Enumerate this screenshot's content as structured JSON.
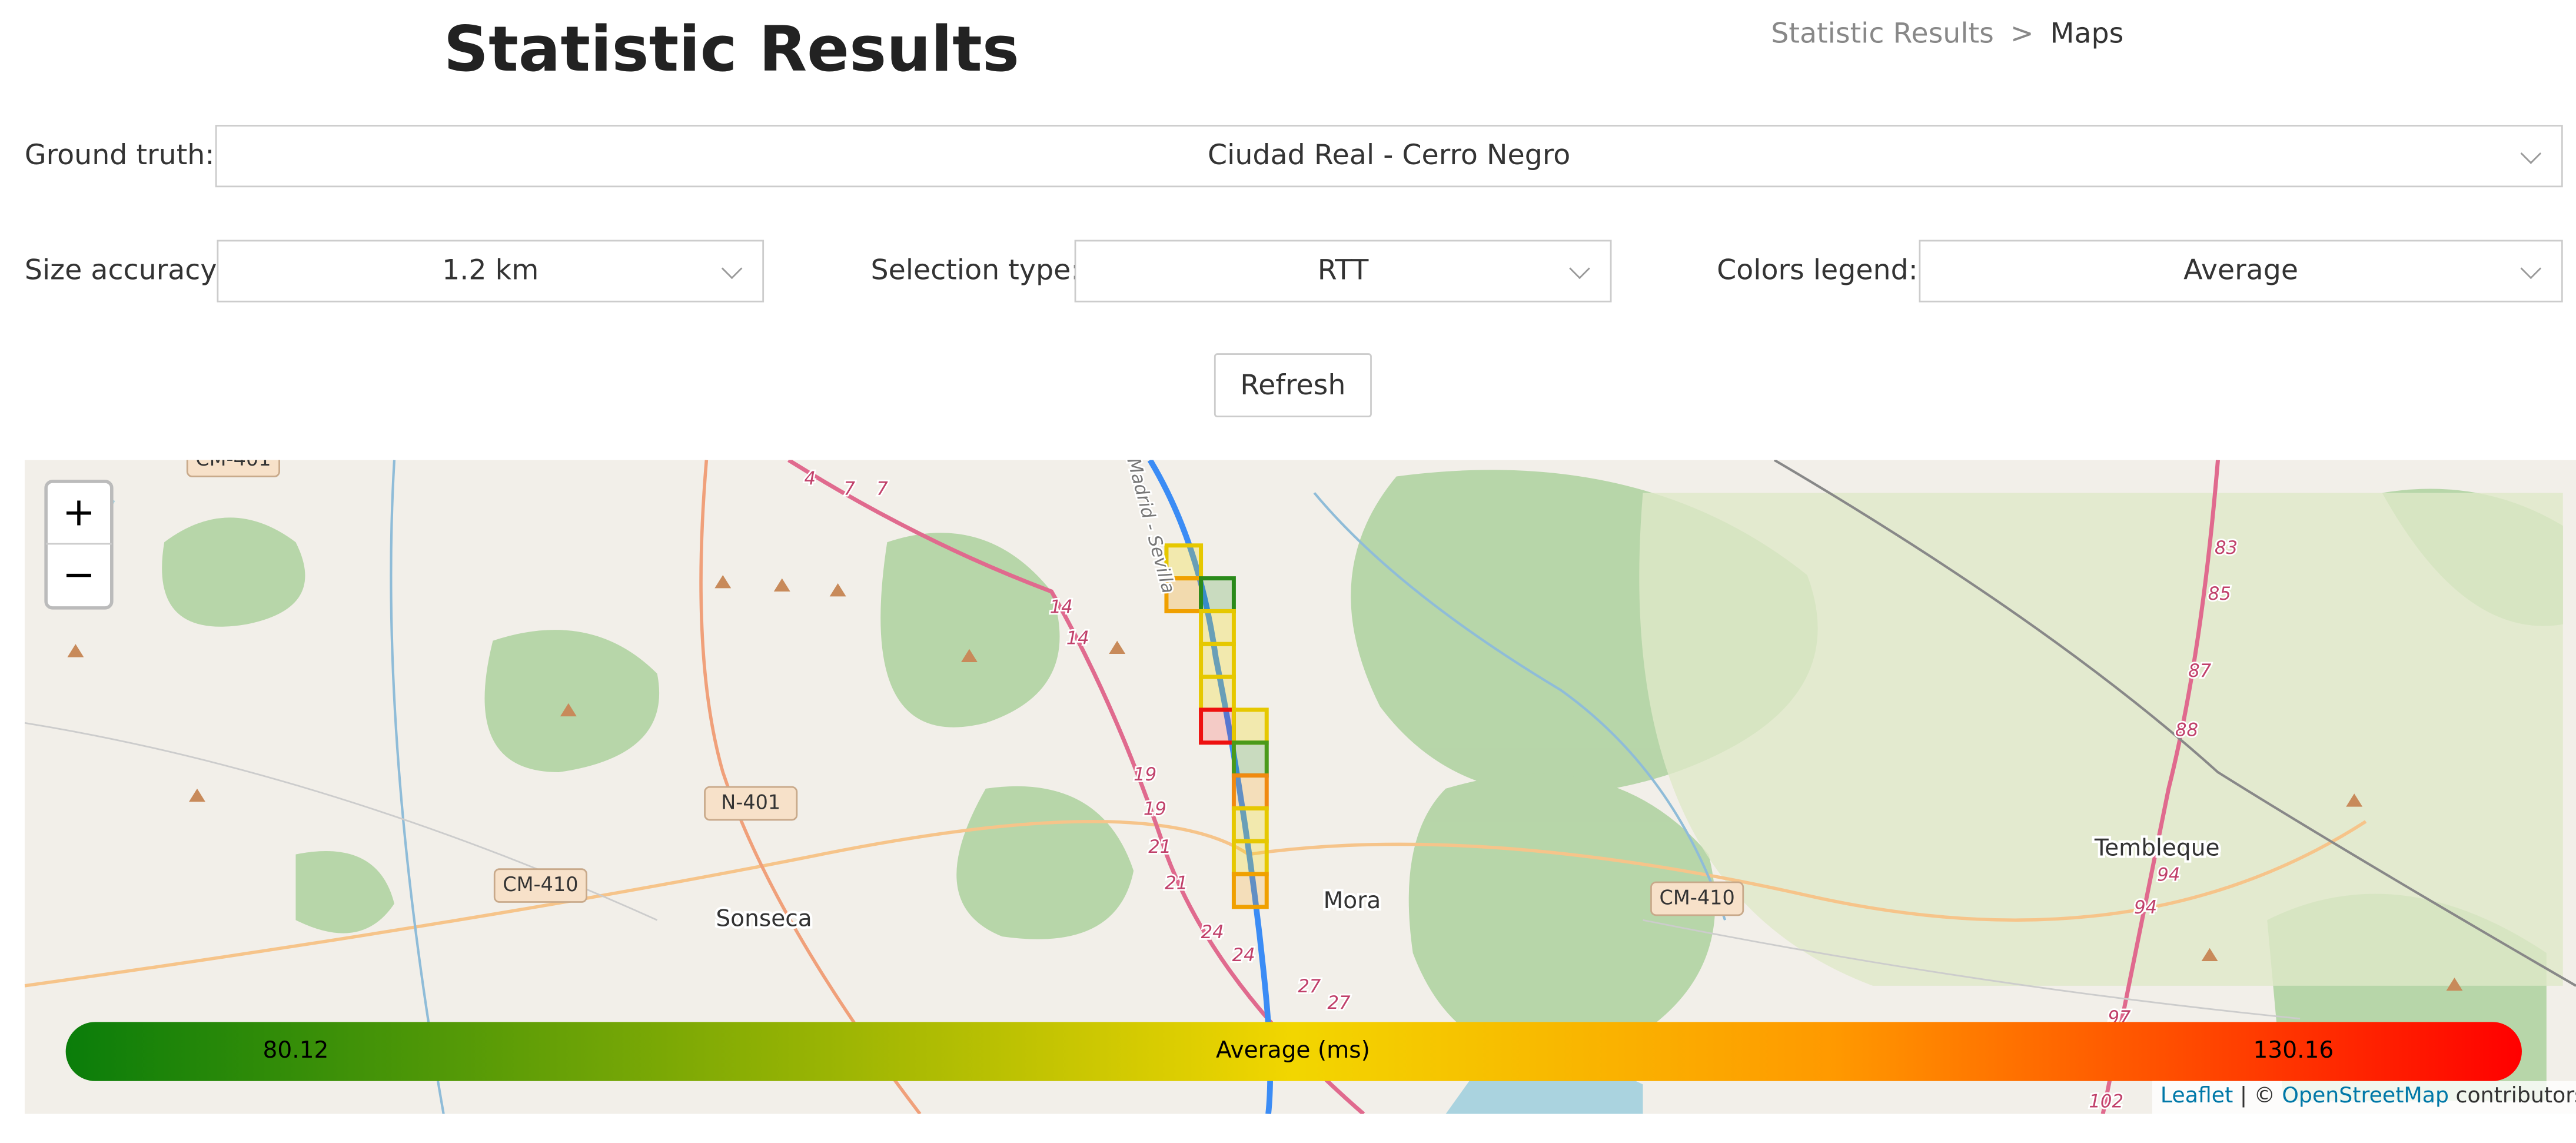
{
  "header": {
    "title": "Statistic Results",
    "breadcrumb": {
      "parent": "Statistic Results",
      "separator": ">",
      "current": "Maps"
    }
  },
  "filters": {
    "ground_truth": {
      "label": "Ground truth:",
      "value": "Ciudad Real - Cerro Negro"
    },
    "size_accuracy": {
      "label": "Size accuracy:",
      "value": "1.2 km"
    },
    "selection_type": {
      "label": "Selection type:",
      "value": "RTT"
    },
    "colors_legend": {
      "label": "Colors legend:",
      "value": "Average"
    }
  },
  "refresh": "Refresh",
  "map": {
    "zoom_in": "+",
    "zoom_out": "−",
    "places": [
      "Sonseca",
      "Mora",
      "Tembleque"
    ],
    "road_shields": [
      "CM-401",
      "N-401",
      "CM-410",
      "CM-410"
    ],
    "road_numbers": [
      "4",
      "7",
      "7",
      "14",
      "14",
      "19",
      "19",
      "21",
      "21",
      "24",
      "24",
      "27",
      "27",
      "83",
      "85",
      "87",
      "88",
      "94",
      "94",
      "97",
      "102",
      "Madrid - Sevilla"
    ],
    "legend": {
      "title": "Average (ms)",
      "min": 80.12,
      "max": 130.16
    },
    "attribution": {
      "leaflet": "Leaflet",
      "separator": "| ©",
      "osm": "OpenStreetMap",
      "suffix": "contributors"
    }
  }
}
